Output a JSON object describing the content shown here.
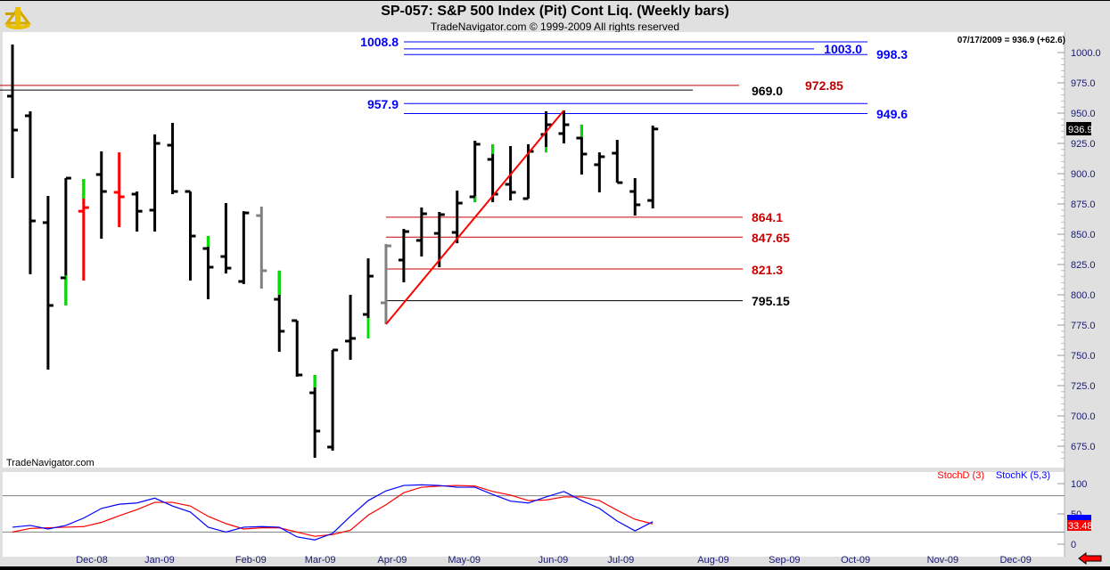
{
  "header": {
    "title": "SP-057:  S&P 500 Index (Pit) Cont Liq.  (Weekly bars)",
    "copyright": "TradeNavigator.com © 1999-2009 All rights reserved"
  },
  "watermark": "TradeNavigator.com",
  "last_readout": "07/17/2009 = 936.9 (+62.6)",
  "last_price_badge": "936.9",
  "colors": {
    "up_accent": "#00e000",
    "bar": "#000000",
    "red": "#ff0000",
    "gray": "#808080",
    "blue": "#0000ff",
    "darkred": "#c00000"
  },
  "chart_data": [
    {
      "type": "ohlc",
      "title": "SP-057:  S&P 500 Index (Pit) Cont Liq.  (Weekly bars)",
      "ylim": [
        660,
        1012
      ],
      "yticks": [
        "1000.0",
        "975.0",
        "950.0",
        "925.0",
        "900.0",
        "875.0",
        "850.0",
        "825.0",
        "800.0",
        "775.0",
        "750.0",
        "725.0",
        "700.0",
        "675.0"
      ],
      "xticks": [
        {
          "label": "Dec-08",
          "week_index": 4.46
        },
        {
          "label": "Jan-09",
          "week_index": 8.27
        },
        {
          "label": "Feb-09",
          "week_index": 13.4
        },
        {
          "label": "Mar-09",
          "week_index": 17.3
        },
        {
          "label": "Apr-09",
          "week_index": 21.35
        },
        {
          "label": "May-09",
          "week_index": 25.4
        },
        {
          "label": "Jun-09",
          "week_index": 30.4
        },
        {
          "label": "Jul-09",
          "week_index": 34.2
        },
        {
          "label": "Aug-09",
          "week_index": 39.4
        },
        {
          "label": "Sep-09",
          "week_index": 43.4
        },
        {
          "label": "Oct-09",
          "week_index": 47.4
        },
        {
          "label": "Nov-09",
          "week_index": 52.3
        },
        {
          "label": "Dec-09",
          "week_index": 56.4
        }
      ],
      "bars": [
        {
          "o": 964,
          "h": 1006.6,
          "l": 896.3,
          "c": 936,
          "color": "black"
        },
        {
          "o": 947.8,
          "h": 951.5,
          "l": 817,
          "c": 861,
          "color": "black"
        },
        {
          "o": 859.6,
          "h": 881.6,
          "l": 738.2,
          "c": 791.2,
          "color": "black"
        },
        {
          "o": 814,
          "h": 896.3,
          "l": 791.2,
          "c": 896.3,
          "color": "black",
          "accent": [
            791.2,
            816
          ]
        },
        {
          "o": 869,
          "h": 895.6,
          "l": 811.8,
          "c": 872,
          "color": "red",
          "accent": [
            879.4,
            895.6
          ]
        },
        {
          "o": 899.3,
          "h": 918.4,
          "l": 846.3,
          "c": 885.3,
          "color": "black"
        },
        {
          "o": 884.6,
          "h": 917.6,
          "l": 855.9,
          "c": 880.9,
          "color": "red"
        },
        {
          "o": 883.1,
          "h": 885.3,
          "l": 852.2,
          "c": 869,
          "color": "black"
        },
        {
          "o": 869.9,
          "h": 932.4,
          "l": 852.2,
          "c": 925,
          "color": "black"
        },
        {
          "o": 923.5,
          "h": 941.9,
          "l": 883.1,
          "c": 885.3,
          "color": "black"
        },
        {
          "o": 885.3,
          "h": 885.3,
          "l": 811.8,
          "c": 848.5,
          "color": "black"
        },
        {
          "o": 838.2,
          "h": 848.5,
          "l": 796.3,
          "c": 822.8,
          "color": "black",
          "accent": [
            839.7,
            848.5
          ]
        },
        {
          "o": 831.6,
          "h": 875.7,
          "l": 817.6,
          "c": 822,
          "color": "black"
        },
        {
          "o": 811,
          "h": 869,
          "l": 808.8,
          "c": 867.6,
          "color": "black"
        },
        {
          "o": 865.4,
          "h": 872.8,
          "l": 805.1,
          "c": 819.9,
          "color": "gray"
        },
        {
          "o": 796.3,
          "h": 819.9,
          "l": 752.9,
          "c": 769.9,
          "color": "black",
          "accent": [
            800,
            819.9
          ]
        },
        {
          "o": 778.7,
          "h": 778.7,
          "l": 732.4,
          "c": 733.8,
          "color": "black"
        },
        {
          "o": 719.1,
          "h": 733.8,
          "l": 665.4,
          "c": 687.5,
          "color": "black",
          "accent": [
            723.5,
            733.8
          ]
        },
        {
          "o": 674.3,
          "h": 754.4,
          "l": 671.3,
          "c": 754.4,
          "color": "black"
        },
        {
          "o": 761.8,
          "h": 800,
          "l": 746.3,
          "c": 764,
          "color": "black"
        },
        {
          "o": 783.8,
          "h": 830.1,
          "l": 764,
          "c": 815.4,
          "color": "black",
          "accent": [
            764,
            780.9
          ]
        },
        {
          "o": 793.4,
          "h": 841.9,
          "l": 775.7,
          "c": 840.4,
          "color": "gray"
        },
        {
          "o": 828.7,
          "h": 854.4,
          "l": 810.3,
          "c": 852.2,
          "color": "black"
        },
        {
          "o": 844.9,
          "h": 872.1,
          "l": 831.6,
          "c": 866.9,
          "color": "black"
        },
        {
          "o": 850.7,
          "h": 868.4,
          "l": 822.8,
          "c": 866.2,
          "color": "black"
        },
        {
          "o": 851.5,
          "h": 886,
          "l": 842.6,
          "c": 875.7,
          "color": "black"
        },
        {
          "o": 880.9,
          "h": 927.2,
          "l": 876.5,
          "c": 924.3,
          "color": "black",
          "accent": [
            876.5,
            881.5
          ]
        },
        {
          "o": 911.8,
          "h": 924.3,
          "l": 876.5,
          "c": 883.1,
          "color": "black",
          "accent": [
            916.2,
            924.3
          ]
        },
        {
          "o": 891.2,
          "h": 922.8,
          "l": 877.9,
          "c": 884.6,
          "color": "black"
        },
        {
          "o": 879.4,
          "h": 924.3,
          "l": 879.4,
          "c": 918.4,
          "color": "black"
        },
        {
          "o": 932.4,
          "h": 951.5,
          "l": 917.6,
          "c": 940.4,
          "color": "black",
          "accent": [
            917.6,
            922.1
          ]
        },
        {
          "o": 933.1,
          "h": 952.2,
          "l": 925,
          "c": 940.4,
          "color": "black"
        },
        {
          "o": 929.4,
          "h": 940.4,
          "l": 899.3,
          "c": 916.2,
          "color": "black",
          "accent": [
            930.1,
            940.4
          ]
        },
        {
          "o": 907.4,
          "h": 917.6,
          "l": 884.6,
          "c": 914,
          "color": "black"
        },
        {
          "o": 916.9,
          "h": 927.9,
          "l": 892.6,
          "c": 892.6,
          "color": "black"
        },
        {
          "o": 885.3,
          "h": 896.3,
          "l": 865.4,
          "c": 874.3,
          "color": "black"
        },
        {
          "o": 877.9,
          "h": 939.7,
          "l": 871.3,
          "c": 936.9,
          "color": "black"
        }
      ],
      "levels": [
        {
          "price": 1008.8,
          "label": "1008.8",
          "color": "#0000ff"
        },
        {
          "price": 1003.0,
          "label": "1003.0",
          "color": "#0000ff"
        },
        {
          "price": 998.3,
          "label": "998.3",
          "color": "#0000ff"
        },
        {
          "price": 972.85,
          "label": "972.85",
          "color": "#c00000"
        },
        {
          "price": 969.0,
          "label": "969.0",
          "color": "#000000"
        },
        {
          "price": 957.9,
          "label": "957.9",
          "color": "#0000ff"
        },
        {
          "price": 949.6,
          "label": "949.6",
          "color": "#0000ff"
        },
        {
          "price": 864.1,
          "label": "864.1",
          "color": "#cc0000"
        },
        {
          "price": 847.65,
          "label": "847.65",
          "color": "#cc0000"
        },
        {
          "price": 821.3,
          "label": "821.3",
          "color": "#cc0000"
        },
        {
          "price": 795.15,
          "label": "795.15",
          "color": "#000000"
        }
      ],
      "trendline": {
        "from": {
          "week_index": 21,
          "price": 775.7
        },
        "to": {
          "week_index": 31,
          "price": 952.2
        },
        "color": "#ff0000"
      }
    },
    {
      "type": "line",
      "title": "Stochastic",
      "ylim": [
        0,
        100
      ],
      "yticks": [
        "100",
        "50",
        "0"
      ],
      "guides": [
        80,
        20
      ],
      "series": [
        {
          "name": "StochD (3)",
          "color": "#ff0000",
          "values": [
            20,
            26,
            27,
            28,
            29,
            36,
            47,
            57,
            69,
            69,
            63,
            46,
            34,
            25,
            27,
            27,
            20,
            13,
            16,
            23,
            48,
            65,
            85,
            94,
            96,
            97,
            96,
            87,
            81,
            72,
            73,
            78,
            78,
            72,
            56,
            41,
            33.48
          ]
        },
        {
          "name": "StochK (5,3)",
          "color": "#0000ff",
          "values": [
            28,
            31,
            25,
            31,
            43,
            59,
            66,
            68,
            76,
            63,
            53,
            28,
            20,
            28,
            29,
            28,
            12,
            7,
            18,
            46,
            72,
            88,
            97,
            98,
            97,
            94,
            94,
            82,
            71,
            68,
            78,
            87,
            72,
            59,
            38,
            22,
            37
          ]
        }
      ],
      "last_value_badge": "33.48"
    }
  ]
}
